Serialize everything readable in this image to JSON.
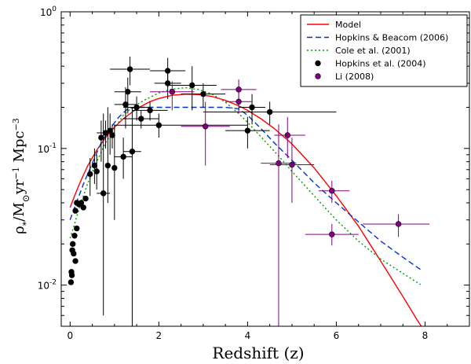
{
  "chart_data": {
    "type": "scatter",
    "title": "",
    "xlabel": "Redshift (z)",
    "ylabel_parts": {
      "rho": "ρ",
      "dot": "·",
      "star": "*",
      "slash": "/M",
      "sun": "⊙",
      "yr": "yr",
      "minus1": "−1",
      "mpc": " Mpc",
      "minus3": "−3"
    },
    "xlim": [
      -0.2,
      9.0
    ],
    "ylim": [
      0.005,
      1.0
    ],
    "yscale": "log",
    "grid": false,
    "legend_position": "top-right",
    "x_ticks": [
      {
        "value": 0,
        "label": "0"
      },
      {
        "value": 2,
        "label": "2"
      },
      {
        "value": 4,
        "label": "4"
      },
      {
        "value": 6,
        "label": "6"
      },
      {
        "value": 8,
        "label": "8"
      }
    ],
    "y_ticks": [
      {
        "value": 0.01,
        "base": "10",
        "exp": "-2"
      },
      {
        "value": 0.1,
        "base": "10",
        "exp": "-1"
      },
      {
        "value": 1,
        "base": "10",
        "exp": "0"
      }
    ],
    "lines": [
      {
        "name": "Model",
        "color": "#ff0000",
        "dash": "",
        "points": [
          [
            0.0,
            0.037
          ],
          [
            0.1,
            0.045
          ],
          [
            0.2,
            0.054
          ],
          [
            0.3,
            0.064
          ],
          [
            0.4,
            0.075
          ],
          [
            0.6,
            0.097
          ],
          [
            0.8,
            0.12
          ],
          [
            1.0,
            0.143
          ],
          [
            1.2,
            0.165
          ],
          [
            1.5,
            0.195
          ],
          [
            1.8,
            0.22
          ],
          [
            2.0,
            0.232
          ],
          [
            2.3,
            0.245
          ],
          [
            2.6,
            0.25
          ],
          [
            2.9,
            0.248
          ],
          [
            3.2,
            0.24
          ],
          [
            3.5,
            0.225
          ],
          [
            3.8,
            0.205
          ],
          [
            4.0,
            0.19
          ],
          [
            4.3,
            0.165
          ],
          [
            4.6,
            0.14
          ],
          [
            5.0,
            0.108
          ],
          [
            5.5,
            0.072
          ],
          [
            6.0,
            0.045
          ],
          [
            6.5,
            0.027
          ],
          [
            7.0,
            0.015
          ],
          [
            7.3,
            0.0105
          ],
          [
            7.6,
            0.0073
          ],
          [
            7.8,
            0.0057
          ],
          [
            7.95,
            0.0048
          ]
        ]
      },
      {
        "name": "Hopkins & Beacom (2006)",
        "color": "#0033cc",
        "dash": "7,4",
        "points": [
          [
            0.0,
            0.03
          ],
          [
            0.1,
            0.037
          ],
          [
            0.2,
            0.045
          ],
          [
            0.3,
            0.055
          ],
          [
            0.5,
            0.078
          ],
          [
            0.7,
            0.11
          ],
          [
            0.9,
            0.14
          ],
          [
            1.1,
            0.17
          ],
          [
            1.3,
            0.195
          ],
          [
            1.5,
            0.2
          ],
          [
            2.0,
            0.2
          ],
          [
            2.5,
            0.2
          ],
          [
            3.0,
            0.2
          ],
          [
            3.5,
            0.2
          ],
          [
            3.8,
            0.195
          ],
          [
            4.0,
            0.175
          ],
          [
            4.3,
            0.14
          ],
          [
            4.6,
            0.11
          ],
          [
            5.0,
            0.082
          ],
          [
            5.5,
            0.056
          ],
          [
            6.0,
            0.04
          ],
          [
            6.5,
            0.029
          ],
          [
            7.0,
            0.021
          ],
          [
            7.5,
            0.016
          ],
          [
            7.9,
            0.013
          ]
        ]
      },
      {
        "name": "Cole et al. (2001)",
        "color": "#009900",
        "dash": "2,3",
        "points": [
          [
            0.0,
            0.022
          ],
          [
            0.1,
            0.028
          ],
          [
            0.2,
            0.036
          ],
          [
            0.3,
            0.045
          ],
          [
            0.4,
            0.056
          ],
          [
            0.6,
            0.08
          ],
          [
            0.8,
            0.11
          ],
          [
            1.0,
            0.14
          ],
          [
            1.2,
            0.175
          ],
          [
            1.4,
            0.2
          ],
          [
            1.7,
            0.228
          ],
          [
            2.0,
            0.255
          ],
          [
            2.3,
            0.272
          ],
          [
            2.6,
            0.278
          ],
          [
            2.9,
            0.27
          ],
          [
            3.2,
            0.25
          ],
          [
            3.5,
            0.218
          ],
          [
            3.8,
            0.18
          ],
          [
            4.0,
            0.155
          ],
          [
            4.3,
            0.122
          ],
          [
            4.7,
            0.088
          ],
          [
            5.0,
            0.068
          ],
          [
            5.5,
            0.045
          ],
          [
            6.0,
            0.03
          ],
          [
            6.5,
            0.021
          ],
          [
            7.0,
            0.0155
          ],
          [
            7.5,
            0.0122
          ],
          [
            7.9,
            0.0101
          ]
        ]
      }
    ],
    "series": [
      {
        "name": "Hopkins et al. (2004)",
        "color": "#000000",
        "points": [
          {
            "x": 0.02,
            "y": 0.0105
          },
          {
            "x": 0.03,
            "y": 0.0125
          },
          {
            "x": 0.04,
            "y": 0.0118
          },
          {
            "x": 0.05,
            "y": 0.018
          },
          {
            "x": 0.06,
            "y": 0.02
          },
          {
            "x": 0.08,
            "y": 0.017
          },
          {
            "x": 0.1,
            "y": 0.023
          },
          {
            "x": 0.12,
            "y": 0.015
          },
          {
            "x": 0.15,
            "y": 0.026
          },
          {
            "x": 0.12,
            "y": 0.035
          },
          {
            "x": 0.15,
            "y": 0.04
          },
          {
            "x": 0.2,
            "y": 0.039
          },
          {
            "x": 0.25,
            "y": 0.04
          },
          {
            "x": 0.3,
            "y": 0.037
          },
          {
            "x": 0.35,
            "y": 0.043
          },
          {
            "x": 0.45,
            "y": 0.065,
            "ylo": 0.045,
            "yhi": 0.085
          },
          {
            "x": 0.55,
            "y": 0.075,
            "ylo": 0.055,
            "yhi": 0.1
          },
          {
            "x": 0.6,
            "y": 0.068,
            "ylo": 0.05,
            "yhi": 0.09
          },
          {
            "x": 0.7,
            "y": 0.12,
            "ylo": 0.08,
            "yhi": 0.16
          },
          {
            "x": 0.75,
            "y": 0.047,
            "xlo": 0.6,
            "xhi": 0.9,
            "ylo": 0.006,
            "yhi": 0.18
          },
          {
            "x": 0.8,
            "y": 0.13,
            "xlo": 0.6,
            "xhi": 1.0,
            "ylo": 0.1,
            "yhi": 0.16
          },
          {
            "x": 0.85,
            "y": 0.075,
            "ylo": 0.04,
            "yhi": 0.2
          },
          {
            "x": 0.9,
            "y": 0.135,
            "ylo": 0.09,
            "yhi": 0.18
          },
          {
            "x": 0.95,
            "y": 0.125,
            "ylo": 0.1,
            "yhi": 0.15
          },
          {
            "x": 1.0,
            "y": 0.072,
            "ylo": 0.03,
            "yhi": 0.15
          },
          {
            "x": 1.2,
            "y": 0.087,
            "xlo": 1.0,
            "xhi": 1.4,
            "ylo": 0.06,
            "yhi": 0.12
          },
          {
            "x": 1.25,
            "y": 0.21,
            "xlo": 1.0,
            "xhi": 1.5,
            "ylo": 0.14,
            "yhi": 0.28
          },
          {
            "x": 1.3,
            "y": 0.26,
            "xlo": 1.0,
            "xhi": 1.6,
            "ylo": 0.18,
            "yhi": 0.33
          },
          {
            "x": 1.35,
            "y": 0.38,
            "xlo": 0.9,
            "xhi": 1.8,
            "ylo": 0.29,
            "yhi": 0.47
          },
          {
            "x": 1.4,
            "y": 0.095,
            "xlo": 1.2,
            "xhi": 1.6,
            "ylo": 0.005,
            "yhi": 0.2
          },
          {
            "x": 1.5,
            "y": 0.2,
            "xlo": 1.2,
            "xhi": 1.8,
            "ylo": 0.16,
            "yhi": 0.24
          },
          {
            "x": 1.6,
            "y": 0.165,
            "xlo": 1.2,
            "xhi": 2.0,
            "ylo": 0.14,
            "yhi": 0.19
          },
          {
            "x": 1.8,
            "y": 0.19,
            "xlo": 1.4,
            "xhi": 2.2,
            "ylo": 0.16,
            "yhi": 0.22
          },
          {
            "x": 2.0,
            "y": 0.148,
            "xlo": 1.0,
            "xhi": 4.0,
            "ylo": 0.12,
            "yhi": 0.18
          },
          {
            "x": 2.2,
            "y": 0.37,
            "xlo": 1.8,
            "xhi": 2.6,
            "ylo": 0.28,
            "yhi": 0.46
          },
          {
            "x": 2.2,
            "y": 0.3,
            "xlo": 1.9,
            "xhi": 2.5,
            "ylo": 0.23,
            "yhi": 0.37
          },
          {
            "x": 2.75,
            "y": 0.29,
            "xlo": 2.2,
            "xhi": 3.3,
            "ylo": 0.19,
            "yhi": 0.4
          },
          {
            "x": 3.0,
            "y": 0.25,
            "xlo": 2.5,
            "xhi": 3.5,
            "ylo": 0.2,
            "yhi": 0.3
          },
          {
            "x": 4.0,
            "y": 0.135,
            "xlo": 3.5,
            "xhi": 4.5,
            "ylo": 0.1,
            "yhi": 0.17
          },
          {
            "x": 4.1,
            "y": 0.2,
            "xlo": 3.8,
            "xhi": 4.4,
            "ylo": 0.15,
            "yhi": 0.25
          },
          {
            "x": 4.5,
            "y": 0.185,
            "xlo": 3.0,
            "xhi": 6.0,
            "ylo": 0.15,
            "yhi": 0.22
          }
        ]
      },
      {
        "name": "Li (2008)",
        "color": "#800080",
        "points": [
          {
            "x": 2.3,
            "y": 0.26,
            "xlo": 1.8,
            "xhi": 2.8,
            "ylo": 0.19,
            "yhi": 0.31
          },
          {
            "x": 3.05,
            "y": 0.145,
            "xlo": 2.5,
            "xhi": 3.6,
            "ylo": 0.075,
            "yhi": 0.22
          },
          {
            "x": 3.8,
            "y": 0.27,
            "xlo": 3.4,
            "xhi": 4.2,
            "ylo": 0.22,
            "yhi": 0.32
          },
          {
            "x": 3.8,
            "y": 0.22,
            "xlo": 3.5,
            "xhi": 4.1,
            "ylo": 0.18,
            "yhi": 0.26
          },
          {
            "x": 4.7,
            "y": 0.078,
            "xlo": 4.3,
            "xhi": 5.1,
            "ylo": 0.005,
            "yhi": 0.15
          },
          {
            "x": 4.9,
            "y": 0.125,
            "xlo": 4.6,
            "xhi": 5.3,
            "ylo": 0.085,
            "yhi": 0.17
          },
          {
            "x": 5.0,
            "y": 0.076,
            "xlo": 4.5,
            "xhi": 5.5,
            "ylo": 0.04,
            "yhi": 0.12
          },
          {
            "x": 5.9,
            "y": 0.049,
            "xlo": 5.6,
            "xhi": 6.3,
            "ylo": 0.04,
            "yhi": 0.058
          },
          {
            "x": 5.9,
            "y": 0.0235,
            "xlo": 5.3,
            "xhi": 6.5,
            "ylo": 0.0195,
            "yhi": 0.028
          },
          {
            "x": 7.4,
            "y": 0.028,
            "xlo": 6.6,
            "xhi": 8.1,
            "ylo": 0.0225,
            "yhi": 0.033
          }
        ]
      }
    ],
    "legend": [
      {
        "label": "Model",
        "kind": "line",
        "color": "#ff0000",
        "dash": ""
      },
      {
        "label": "Hopkins & Beacom (2006)",
        "kind": "line",
        "color": "#0033cc",
        "dash": "7,4"
      },
      {
        "label": "Cole et al. (2001)",
        "kind": "line",
        "color": "#009900",
        "dash": "2,3"
      },
      {
        "label": "Hopkins et al. (2004)",
        "kind": "marker",
        "color": "#000000"
      },
      {
        "label": "Li (2008)",
        "kind": "marker",
        "color": "#800080"
      }
    ]
  }
}
